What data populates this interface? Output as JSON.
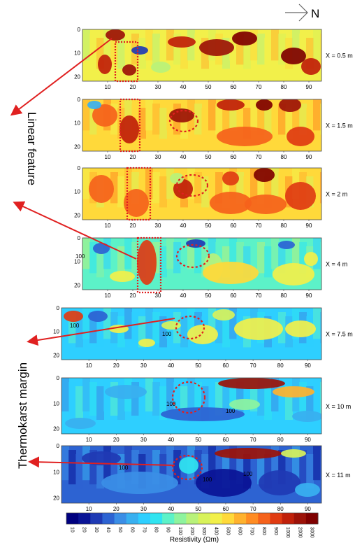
{
  "north_label": "N",
  "side_labels": {
    "linear_feature": "Linear feature",
    "thermokarst_margin": "Thermokarst margin"
  },
  "colorbar": {
    "label": "Resistivity (Ωm)",
    "ticks": [
      "10",
      "20",
      "30",
      "40",
      "50",
      "60",
      "70",
      "80",
      "90",
      "100",
      "200",
      "300",
      "400",
      "500",
      "600",
      "700",
      "800",
      "900",
      "1000",
      "2000",
      "3000"
    ],
    "colors": [
      "#00007f",
      "#0a1496",
      "#1f3ab4",
      "#2d63d2",
      "#3b8ee6",
      "#38b0f0",
      "#2ecfff",
      "#30e4f0",
      "#5cf2c8",
      "#8ef39e",
      "#b8f27a",
      "#d8f25a",
      "#f2f04a",
      "#ffd93a",
      "#ffb22e",
      "#ff8c23",
      "#f5621b",
      "#e03b12",
      "#c0200a",
      "#9c1208",
      "#7f0000"
    ]
  },
  "chart_data": [
    {
      "type": "heatmap",
      "label": "X = 0.5 m",
      "xticks": [
        "10",
        "20",
        "30",
        "40",
        "50",
        "60",
        "70",
        "80",
        "90"
      ],
      "yticks": [
        "0",
        "10",
        "20"
      ],
      "xlim": [
        0,
        95
      ],
      "ylim": [
        0,
        22
      ],
      "annotations": []
    },
    {
      "type": "heatmap",
      "label": "X = 1.5  m",
      "xticks": [
        "10",
        "20",
        "30",
        "40",
        "50",
        "60",
        "70",
        "80",
        "90"
      ],
      "yticks": [
        "0",
        "10",
        "20"
      ],
      "xlim": [
        0,
        95
      ],
      "ylim": [
        0,
        22
      ],
      "annotations": []
    },
    {
      "type": "heatmap",
      "label": "X = 2  m",
      "xticks": [
        "10",
        "20",
        "30",
        "40",
        "50",
        "60",
        "70",
        "80",
        "90"
      ],
      "yticks": [
        "0",
        "10",
        "20"
      ],
      "xlim": [
        0,
        95
      ],
      "ylim": [
        0,
        22
      ],
      "annotations": []
    },
    {
      "type": "heatmap",
      "label": "X = 4  m",
      "xticks": [
        "10",
        "20",
        "30",
        "40",
        "50",
        "60",
        "70",
        "80",
        "90"
      ],
      "yticks": [
        "0",
        "10",
        "20"
      ],
      "xlim": [
        0,
        95
      ],
      "ylim": [
        0,
        22
      ],
      "annotations": [
        "100"
      ]
    },
    {
      "type": "heatmap",
      "label": "X = 7.5  m",
      "xticks": [
        "10",
        "20",
        "30",
        "40",
        "50",
        "60",
        "70",
        "80",
        "90"
      ],
      "yticks": [
        "0",
        "10",
        "20"
      ],
      "xlim": [
        0,
        95
      ],
      "ylim": [
        0,
        22
      ],
      "annotations": [
        "100",
        "100"
      ]
    },
    {
      "type": "heatmap",
      "label": "X = 10  m",
      "xticks": [
        "10",
        "20",
        "30",
        "40",
        "50",
        "60",
        "70",
        "80",
        "90"
      ],
      "yticks": [
        "0",
        "10",
        "20"
      ],
      "xlim": [
        0,
        95
      ],
      "ylim": [
        0,
        22
      ],
      "annotations": [
        "100",
        "100"
      ]
    },
    {
      "type": "heatmap",
      "label": "X = 11  m",
      "xticks": [
        "10",
        "20",
        "30",
        "40",
        "50",
        "60",
        "70",
        "80",
        "90"
      ],
      "yticks": [
        "0",
        "10",
        "20"
      ],
      "xlim": [
        0,
        95
      ],
      "ylim": [
        0,
        22
      ],
      "annotations": [
        "100",
        "100",
        "100"
      ]
    }
  ]
}
